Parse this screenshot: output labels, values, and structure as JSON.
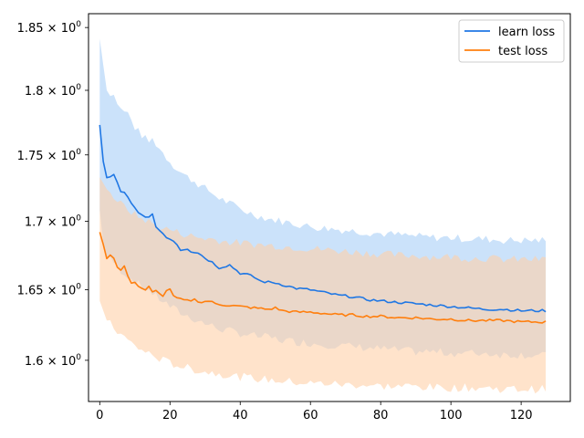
{
  "chart_data": {
    "type": "line",
    "title": "",
    "xlabel": "",
    "ylabel": "",
    "xlim": [
      -3.2,
      134
    ],
    "ylim": [
      1.5715,
      1.8612
    ],
    "yscale": "log",
    "grid": false,
    "legend_position": "top-right",
    "x_ticks": [
      0,
      20,
      40,
      60,
      80,
      100,
      120
    ],
    "y_ticks": [
      {
        "value": 1.6,
        "base": "1.6 × 10",
        "exp": "0"
      },
      {
        "value": 1.65,
        "base": "1.65 × 10",
        "exp": "0"
      },
      {
        "value": 1.7,
        "base": "1.7 × 10",
        "exp": "0"
      },
      {
        "value": 1.75,
        "base": "1.75 × 10",
        "exp": "0"
      },
      {
        "value": 1.8,
        "base": "1.8 × 10",
        "exp": "0"
      },
      {
        "value": 1.85,
        "base": "1.85 × 10",
        "exp": "0"
      }
    ],
    "series": [
      {
        "name": "learn loss",
        "color": "#1f77e4",
        "band_color": "#a9cff7",
        "band_opacity": 0.6,
        "points": [
          [
            0,
            1.773
          ],
          [
            1,
            1.745
          ],
          [
            2,
            1.733
          ],
          [
            3,
            1.733
          ],
          [
            4,
            1.735
          ],
          [
            6,
            1.722
          ],
          [
            7,
            1.722
          ],
          [
            9,
            1.713
          ],
          [
            11,
            1.706
          ],
          [
            13,
            1.703
          ],
          [
            15,
            1.705
          ],
          [
            16,
            1.695
          ],
          [
            17,
            1.694
          ],
          [
            19,
            1.688
          ],
          [
            21,
            1.686
          ],
          [
            22,
            1.683
          ],
          [
            23,
            1.679
          ],
          [
            25,
            1.68
          ],
          [
            26,
            1.678
          ],
          [
            28,
            1.677
          ],
          [
            30,
            1.673
          ],
          [
            32,
            1.67
          ],
          [
            34,
            1.666
          ],
          [
            37,
            1.668
          ],
          [
            40,
            1.662
          ],
          [
            42,
            1.661
          ],
          [
            44,
            1.659
          ],
          [
            46,
            1.656
          ],
          [
            50,
            1.655
          ],
          [
            53,
            1.653
          ],
          [
            56,
            1.651
          ],
          [
            60,
            1.65
          ],
          [
            64,
            1.648
          ],
          [
            68,
            1.646
          ],
          [
            72,
            1.645
          ],
          [
            76,
            1.643
          ],
          [
            80,
            1.642
          ],
          [
            85,
            1.641
          ],
          [
            90,
            1.64
          ],
          [
            95,
            1.639
          ],
          [
            100,
            1.638
          ],
          [
            105,
            1.637
          ],
          [
            110,
            1.636
          ],
          [
            115,
            1.636
          ],
          [
            120,
            1.635
          ],
          [
            127,
            1.635
          ]
        ],
        "upper": [
          [
            0,
            1.841
          ],
          [
            1,
            1.82
          ],
          [
            2,
            1.8
          ],
          [
            4,
            1.796
          ],
          [
            6,
            1.785
          ],
          [
            8,
            1.782
          ],
          [
            10,
            1.771
          ],
          [
            12,
            1.765
          ],
          [
            14,
            1.76
          ],
          [
            15,
            1.762
          ],
          [
            17,
            1.755
          ],
          [
            19,
            1.748
          ],
          [
            21,
            1.742
          ],
          [
            23,
            1.737
          ],
          [
            25,
            1.733
          ],
          [
            27,
            1.73
          ],
          [
            29,
            1.726
          ],
          [
            31,
            1.723
          ],
          [
            33,
            1.719
          ],
          [
            35,
            1.716
          ],
          [
            38,
            1.712
          ],
          [
            41,
            1.708
          ],
          [
            44,
            1.705
          ],
          [
            48,
            1.702
          ],
          [
            52,
            1.7
          ],
          [
            56,
            1.698
          ],
          [
            60,
            1.696
          ],
          [
            64,
            1.695
          ],
          [
            68,
            1.694
          ],
          [
            72,
            1.693
          ],
          [
            76,
            1.692
          ],
          [
            80,
            1.691
          ],
          [
            85,
            1.69
          ],
          [
            90,
            1.689
          ],
          [
            95,
            1.688
          ],
          [
            100,
            1.688
          ],
          [
            105,
            1.687
          ],
          [
            110,
            1.687
          ],
          [
            115,
            1.686
          ],
          [
            120,
            1.686
          ],
          [
            127,
            1.686
          ]
        ],
        "lower": [
          [
            0,
            1.708
          ],
          [
            1,
            1.684
          ],
          [
            2,
            1.673
          ],
          [
            4,
            1.67
          ],
          [
            6,
            1.664
          ],
          [
            8,
            1.66
          ],
          [
            10,
            1.656
          ],
          [
            12,
            1.652
          ],
          [
            14,
            1.65
          ],
          [
            16,
            1.645
          ],
          [
            18,
            1.642
          ],
          [
            20,
            1.638
          ],
          [
            22,
            1.635
          ],
          [
            24,
            1.632
          ],
          [
            26,
            1.63
          ],
          [
            28,
            1.628
          ],
          [
            30,
            1.626
          ],
          [
            33,
            1.623
          ],
          [
            36,
            1.621
          ],
          [
            40,
            1.619
          ],
          [
            44,
            1.617
          ],
          [
            48,
            1.616
          ],
          [
            52,
            1.614
          ],
          [
            56,
            1.613
          ],
          [
            60,
            1.612
          ],
          [
            65,
            1.611
          ],
          [
            70,
            1.61
          ],
          [
            75,
            1.609
          ],
          [
            80,
            1.608
          ],
          [
            85,
            1.607
          ],
          [
            90,
            1.606
          ],
          [
            95,
            1.606
          ],
          [
            100,
            1.605
          ],
          [
            105,
            1.605
          ],
          [
            110,
            1.605
          ],
          [
            115,
            1.604
          ],
          [
            120,
            1.604
          ],
          [
            127,
            1.603
          ]
        ]
      },
      {
        "name": "test loss",
        "color": "#ff7f0e",
        "band_color": "#ffd0a8",
        "band_opacity": 0.6,
        "points": [
          [
            0,
            1.692
          ],
          [
            1,
            1.683
          ],
          [
            2,
            1.672
          ],
          [
            3,
            1.676
          ],
          [
            4,
            1.673
          ],
          [
            5,
            1.667
          ],
          [
            6,
            1.664
          ],
          [
            7,
            1.667
          ],
          [
            8,
            1.66
          ],
          [
            9,
            1.654
          ],
          [
            10,
            1.656
          ],
          [
            11,
            1.653
          ],
          [
            12,
            1.651
          ],
          [
            13,
            1.65
          ],
          [
            14,
            1.652
          ],
          [
            15,
            1.648
          ],
          [
            16,
            1.649
          ],
          [
            17,
            1.647
          ],
          [
            18,
            1.646
          ],
          [
            19,
            1.649
          ],
          [
            20,
            1.651
          ],
          [
            21,
            1.645
          ],
          [
            23,
            1.643
          ],
          [
            25,
            1.642
          ],
          [
            27,
            1.643
          ],
          [
            29,
            1.641
          ],
          [
            31,
            1.642
          ],
          [
            33,
            1.64
          ],
          [
            36,
            1.639
          ],
          [
            40,
            1.638
          ],
          [
            44,
            1.637
          ],
          [
            48,
            1.636
          ],
          [
            50,
            1.637
          ],
          [
            52,
            1.635
          ],
          [
            56,
            1.634
          ],
          [
            60,
            1.634
          ],
          [
            64,
            1.633
          ],
          [
            68,
            1.632
          ],
          [
            72,
            1.632
          ],
          [
            76,
            1.631
          ],
          [
            80,
            1.631
          ],
          [
            85,
            1.63
          ],
          [
            90,
            1.63
          ],
          [
            95,
            1.629
          ],
          [
            100,
            1.629
          ],
          [
            105,
            1.628
          ],
          [
            110,
            1.628
          ],
          [
            115,
            1.628
          ],
          [
            120,
            1.627
          ],
          [
            127,
            1.627
          ]
        ],
        "upper": [
          [
            0,
            1.733
          ],
          [
            2,
            1.724
          ],
          [
            4,
            1.718
          ],
          [
            6,
            1.713
          ],
          [
            8,
            1.709
          ],
          [
            10,
            1.705
          ],
          [
            12,
            1.702
          ],
          [
            14,
            1.7
          ],
          [
            16,
            1.697
          ],
          [
            18,
            1.695
          ],
          [
            20,
            1.694
          ],
          [
            22,
            1.692
          ],
          [
            25,
            1.69
          ],
          [
            28,
            1.688
          ],
          [
            32,
            1.687
          ],
          [
            36,
            1.685
          ],
          [
            40,
            1.684
          ],
          [
            45,
            1.683
          ],
          [
            50,
            1.682
          ],
          [
            55,
            1.681
          ],
          [
            60,
            1.68
          ],
          [
            65,
            1.679
          ],
          [
            70,
            1.678
          ],
          [
            75,
            1.677
          ],
          [
            80,
            1.676
          ],
          [
            85,
            1.675
          ],
          [
            90,
            1.675
          ],
          [
            95,
            1.674
          ],
          [
            100,
            1.674
          ],
          [
            105,
            1.673
          ],
          [
            110,
            1.673
          ],
          [
            115,
            1.672
          ],
          [
            120,
            1.672
          ],
          [
            127,
            1.672
          ]
        ],
        "lower": [
          [
            0,
            1.642
          ],
          [
            1,
            1.635
          ],
          [
            2,
            1.628
          ],
          [
            4,
            1.623
          ],
          [
            6,
            1.618
          ],
          [
            8,
            1.614
          ],
          [
            10,
            1.61
          ],
          [
            12,
            1.607
          ],
          [
            14,
            1.605
          ],
          [
            16,
            1.602
          ],
          [
            18,
            1.6
          ],
          [
            20,
            1.598
          ],
          [
            23,
            1.596
          ],
          [
            26,
            1.594
          ],
          [
            30,
            1.592
          ],
          [
            34,
            1.591
          ],
          [
            38,
            1.589
          ],
          [
            42,
            1.588
          ],
          [
            46,
            1.587
          ],
          [
            50,
            1.586
          ],
          [
            55,
            1.585
          ],
          [
            60,
            1.584
          ],
          [
            65,
            1.584
          ],
          [
            70,
            1.583
          ],
          [
            75,
            1.583
          ],
          [
            80,
            1.582
          ],
          [
            85,
            1.582
          ],
          [
            90,
            1.582
          ],
          [
            95,
            1.581
          ],
          [
            100,
            1.581
          ],
          [
            105,
            1.581
          ],
          [
            110,
            1.581
          ],
          [
            115,
            1.58
          ],
          [
            120,
            1.58
          ],
          [
            127,
            1.58
          ]
        ]
      }
    ]
  }
}
